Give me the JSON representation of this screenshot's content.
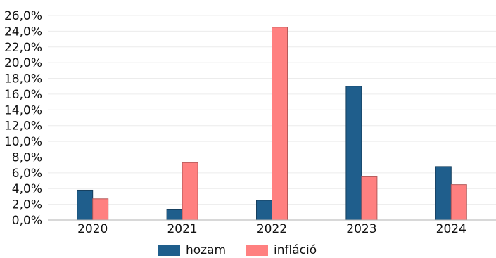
{
  "chart_data": {
    "type": "bar",
    "categories": [
      "2020",
      "2021",
      "2022",
      "2023",
      "2024"
    ],
    "series": [
      {
        "name": "hozam",
        "values": [
          3.8,
          1.3,
          2.5,
          17.0,
          6.8
        ],
        "color": "#1f5e8c",
        "stroke": "#163f5e"
      },
      {
        "name": "infláció",
        "values": [
          2.7,
          7.3,
          24.5,
          5.5,
          4.5
        ],
        "color": "#ff8080",
        "stroke": "#b55a5a"
      }
    ],
    "ylim": [
      0,
      26
    ],
    "ytick_step": 2,
    "ytick_labels": [
      "0,0%",
      "2,0%",
      "4,0%",
      "6,0%",
      "8,0%",
      "10,0%",
      "12,0%",
      "14,0%",
      "16,0%",
      "18,0%",
      "20,0%",
      "22,0%",
      "24,0%",
      "26,0%"
    ],
    "grid": true,
    "legend_position": "bottom",
    "title": "",
    "xlabel": "",
    "ylabel": ""
  }
}
